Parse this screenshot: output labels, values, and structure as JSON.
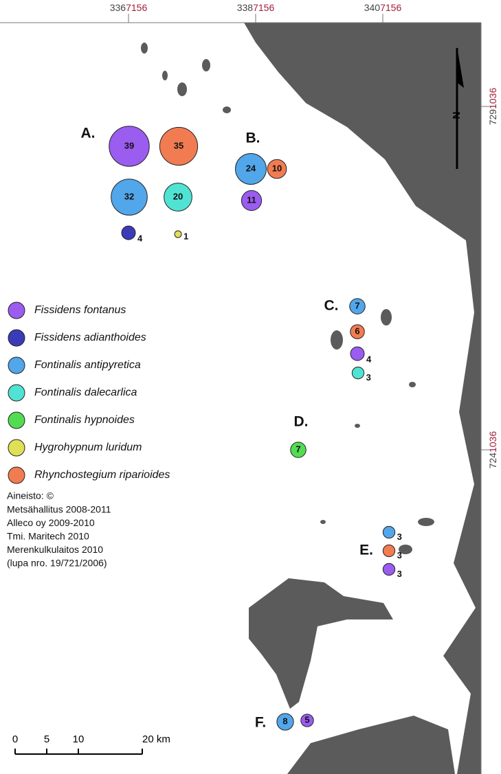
{
  "grid_labels": {
    "top": [
      {
        "major": "336",
        "minor": "7156"
      },
      {
        "major": "338",
        "minor": "7156"
      },
      {
        "major": "340",
        "minor": "7156"
      }
    ],
    "right": [
      {
        "major": "729",
        "minor": "1036"
      },
      {
        "major": "724",
        "minor": "1036"
      }
    ]
  },
  "north": "N",
  "legend": [
    {
      "name": "Fissidens fontanus",
      "color": "#9b5cf0"
    },
    {
      "name": "Fissidens adianthoides",
      "color": "#3b3bb8"
    },
    {
      "name": "Fontinalis antipyretica",
      "color": "#52a6ea"
    },
    {
      "name": "Fontinalis dalecarlica",
      "color": "#50e3d3"
    },
    {
      "name": "Fontinalis hypnoides",
      "color": "#52dc52"
    },
    {
      "name": "Hygrohypnum luridum",
      "color": "#e0e056"
    },
    {
      "name": "Rhynchostegium riparioides",
      "color": "#f27c52"
    }
  ],
  "credits": [
    "Aineisto: ©",
    "Metsähallitus 2008-2011",
    "Alleco oy 2009-2010",
    "Tmi. Maritech 2010",
    "Merenkulkulaitos 2010",
    "(lupa nro. 19/721/2006)"
  ],
  "scale": {
    "labels": [
      "0",
      "5",
      "10",
      "20 km"
    ]
  },
  "sites": [
    {
      "label": "A.",
      "records": [
        {
          "species": "Fissidens fontanus",
          "count": 39
        },
        {
          "species": "Rhynchostegium riparioides",
          "count": 35
        },
        {
          "species": "Fontinalis antipyretica",
          "count": 32
        },
        {
          "species": "Fontinalis dalecarlica",
          "count": 20
        },
        {
          "species": "Fissidens adianthoides",
          "count": 4
        },
        {
          "species": "Hygrohypnum luridum",
          "count": 1
        }
      ]
    },
    {
      "label": "B.",
      "records": [
        {
          "species": "Fontinalis antipyretica",
          "count": 24
        },
        {
          "species": "Rhynchostegium riparioides",
          "count": 10
        },
        {
          "species": "Fissidens fontanus",
          "count": 11
        }
      ]
    },
    {
      "label": "C.",
      "records": [
        {
          "species": "Fontinalis antipyretica",
          "count": 7
        },
        {
          "species": "Rhynchostegium riparioides",
          "count": 6
        },
        {
          "species": "Fissidens fontanus",
          "count": 4
        },
        {
          "species": "Fontinalis dalecarlica",
          "count": 3
        }
      ]
    },
    {
      "label": "D.",
      "records": [
        {
          "species": "Fontinalis hypnoides",
          "count": 7
        }
      ]
    },
    {
      "label": "E.",
      "records": [
        {
          "species": "Fontinalis antipyretica",
          "count": 3
        },
        {
          "species": "Rhynchostegium riparioides",
          "count": 3
        },
        {
          "species": "Fissidens fontanus",
          "count": 3
        }
      ]
    },
    {
      "label": "F.",
      "records": [
        {
          "species": "Fontinalis antipyretica",
          "count": 8
        },
        {
          "species": "Fissidens fontanus",
          "count": 5
        }
      ]
    }
  ]
}
